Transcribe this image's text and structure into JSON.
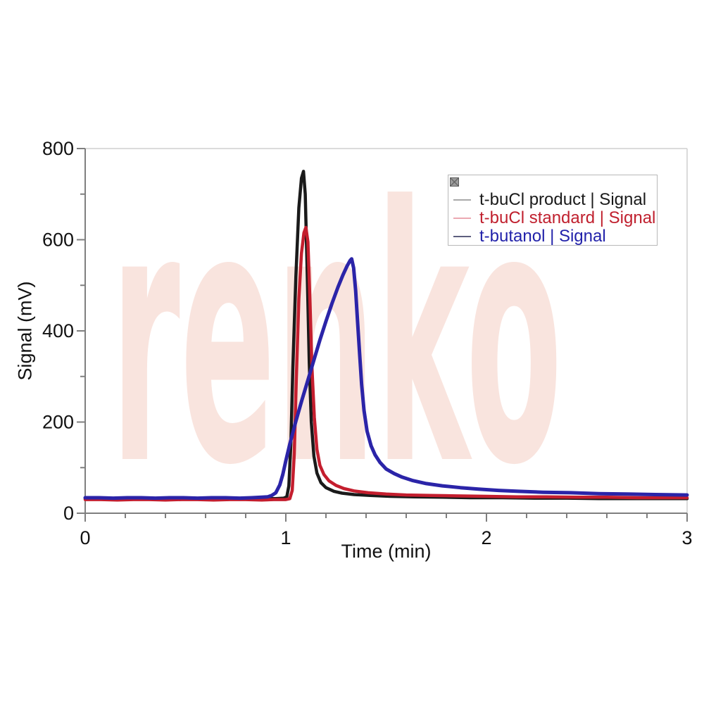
{
  "watermark": {
    "text": "renko",
    "color": "#f9e4de"
  },
  "legend": {
    "handle_icon": "crossed-square-icon",
    "border_color": "#b8b8b8",
    "items": [
      {
        "label": "t-buCl product | Signal",
        "text_color": "#1a1a1a",
        "swatch_color": "#a9a9a9"
      },
      {
        "label": "t-buCl standard | Signal",
        "text_color": "#c0202e",
        "swatch_color": "#eca9b2"
      },
      {
        "label": "t-butanol | Signal",
        "text_color": "#2222aa",
        "swatch_color": "#5d5f7e"
      }
    ]
  },
  "chart_data": {
    "type": "line",
    "title": "",
    "xlabel": "Time (min)",
    "ylabel": "Signal (mV)",
    "xlim": [
      0,
      3
    ],
    "ylim": [
      0,
      800
    ],
    "xticks": [
      0,
      1,
      2,
      3
    ],
    "x_minor_step": 0.2,
    "yticks": [
      0,
      200,
      400,
      600,
      800
    ],
    "y_minor_step": 100,
    "grid": false,
    "legend_position": "upper right",
    "axis_color": "#7f7f7f",
    "frame_color": "#cfcfcf",
    "series": [
      {
        "name": "t-buCl product | Signal",
        "color": "#1a1a1a",
        "peak": {
          "time_min": 1.09,
          "height_mV": 750
        },
        "points": [
          [
            0,
            32
          ],
          [
            0.06,
            31
          ],
          [
            0.12,
            32
          ],
          [
            0.18,
            31
          ],
          [
            0.24,
            32
          ],
          [
            0.3,
            32
          ],
          [
            0.36,
            31
          ],
          [
            0.42,
            32
          ],
          [
            0.48,
            31
          ],
          [
            0.54,
            32
          ],
          [
            0.6,
            32
          ],
          [
            0.66,
            31
          ],
          [
            0.72,
            32
          ],
          [
            0.78,
            31
          ],
          [
            0.84,
            32
          ],
          [
            0.9,
            32
          ],
          [
            0.95,
            32
          ],
          [
            0.99,
            33
          ],
          [
            1.005,
            36
          ],
          [
            1.015,
            60
          ],
          [
            1.025,
            150
          ],
          [
            1.035,
            320
          ],
          [
            1.05,
            520
          ],
          [
            1.065,
            670
          ],
          [
            1.078,
            735
          ],
          [
            1.088,
            750
          ],
          [
            1.097,
            700
          ],
          [
            1.107,
            520
          ],
          [
            1.117,
            330
          ],
          [
            1.127,
            200
          ],
          [
            1.14,
            125
          ],
          [
            1.155,
            88
          ],
          [
            1.175,
            67
          ],
          [
            1.2,
            56
          ],
          [
            1.24,
            48
          ],
          [
            1.28,
            44
          ],
          [
            1.34,
            41
          ],
          [
            1.42,
            39
          ],
          [
            1.52,
            37
          ],
          [
            1.64,
            36
          ],
          [
            1.78,
            35
          ],
          [
            1.92,
            34
          ],
          [
            2.08,
            34
          ],
          [
            2.24,
            33
          ],
          [
            2.4,
            33
          ],
          [
            2.56,
            32
          ],
          [
            2.72,
            32
          ],
          [
            2.88,
            32
          ],
          [
            3.0,
            32
          ]
        ]
      },
      {
        "name": "t-buCl standard | Signal",
        "color": "#c41e2e",
        "peak": {
          "time_min": 1.1,
          "height_mV": 627
        },
        "points": [
          [
            0,
            30
          ],
          [
            0.08,
            30
          ],
          [
            0.16,
            29
          ],
          [
            0.24,
            30
          ],
          [
            0.32,
            30
          ],
          [
            0.4,
            29
          ],
          [
            0.48,
            30
          ],
          [
            0.56,
            30
          ],
          [
            0.64,
            29
          ],
          [
            0.72,
            30
          ],
          [
            0.8,
            30
          ],
          [
            0.88,
            29
          ],
          [
            0.94,
            30
          ],
          [
            1.0,
            30
          ],
          [
            1.02,
            32
          ],
          [
            1.032,
            50
          ],
          [
            1.042,
            130
          ],
          [
            1.052,
            290
          ],
          [
            1.065,
            470
          ],
          [
            1.078,
            570
          ],
          [
            1.09,
            615
          ],
          [
            1.1,
            627
          ],
          [
            1.11,
            595
          ],
          [
            1.12,
            470
          ],
          [
            1.13,
            320
          ],
          [
            1.142,
            210
          ],
          [
            1.155,
            140
          ],
          [
            1.17,
            105
          ],
          [
            1.19,
            85
          ],
          [
            1.215,
            71
          ],
          [
            1.25,
            61
          ],
          [
            1.29,
            54
          ],
          [
            1.34,
            49
          ],
          [
            1.41,
            45
          ],
          [
            1.5,
            42
          ],
          [
            1.6,
            40
          ],
          [
            1.72,
            39
          ],
          [
            1.85,
            38
          ],
          [
            2.0,
            37
          ],
          [
            2.15,
            36
          ],
          [
            2.3,
            36
          ],
          [
            2.45,
            35
          ],
          [
            2.6,
            35
          ],
          [
            2.75,
            34
          ],
          [
            2.9,
            34
          ],
          [
            3.0,
            34
          ]
        ]
      },
      {
        "name": "t-butanol | Signal",
        "color": "#2b24a8",
        "peak": {
          "time_min": 1.33,
          "height_mV": 558
        },
        "points": [
          [
            0,
            34
          ],
          [
            0.07,
            34
          ],
          [
            0.14,
            33
          ],
          [
            0.21,
            34
          ],
          [
            0.28,
            34
          ],
          [
            0.35,
            33
          ],
          [
            0.42,
            34
          ],
          [
            0.49,
            34
          ],
          [
            0.56,
            33
          ],
          [
            0.63,
            34
          ],
          [
            0.7,
            34
          ],
          [
            0.77,
            33
          ],
          [
            0.83,
            34
          ],
          [
            0.88,
            35
          ],
          [
            0.91,
            36
          ],
          [
            0.93,
            39
          ],
          [
            0.95,
            45
          ],
          [
            0.97,
            62
          ],
          [
            0.985,
            85
          ],
          [
            1.0,
            115
          ],
          [
            1.02,
            152
          ],
          [
            1.05,
            202
          ],
          [
            1.08,
            248
          ],
          [
            1.11,
            292
          ],
          [
            1.14,
            336
          ],
          [
            1.17,
            380
          ],
          [
            1.2,
            421
          ],
          [
            1.23,
            460
          ],
          [
            1.26,
            496
          ],
          [
            1.285,
            523
          ],
          [
            1.305,
            542
          ],
          [
            1.32,
            554
          ],
          [
            1.328,
            558
          ],
          [
            1.338,
            538
          ],
          [
            1.348,
            488
          ],
          [
            1.358,
            418
          ],
          [
            1.368,
            348
          ],
          [
            1.378,
            282
          ],
          [
            1.39,
            225
          ],
          [
            1.405,
            180
          ],
          [
            1.425,
            148
          ],
          [
            1.445,
            128
          ],
          [
            1.47,
            111
          ],
          [
            1.5,
            97
          ],
          [
            1.54,
            87
          ],
          [
            1.58,
            79
          ],
          [
            1.63,
            72
          ],
          [
            1.7,
            65
          ],
          [
            1.78,
            60
          ],
          [
            1.87,
            56
          ],
          [
            1.96,
            53
          ],
          [
            2.06,
            50
          ],
          [
            2.16,
            48
          ],
          [
            2.28,
            46
          ],
          [
            2.42,
            45
          ],
          [
            2.56,
            43
          ],
          [
            2.7,
            42
          ],
          [
            2.84,
            41
          ],
          [
            3.0,
            40
          ]
        ]
      }
    ]
  }
}
